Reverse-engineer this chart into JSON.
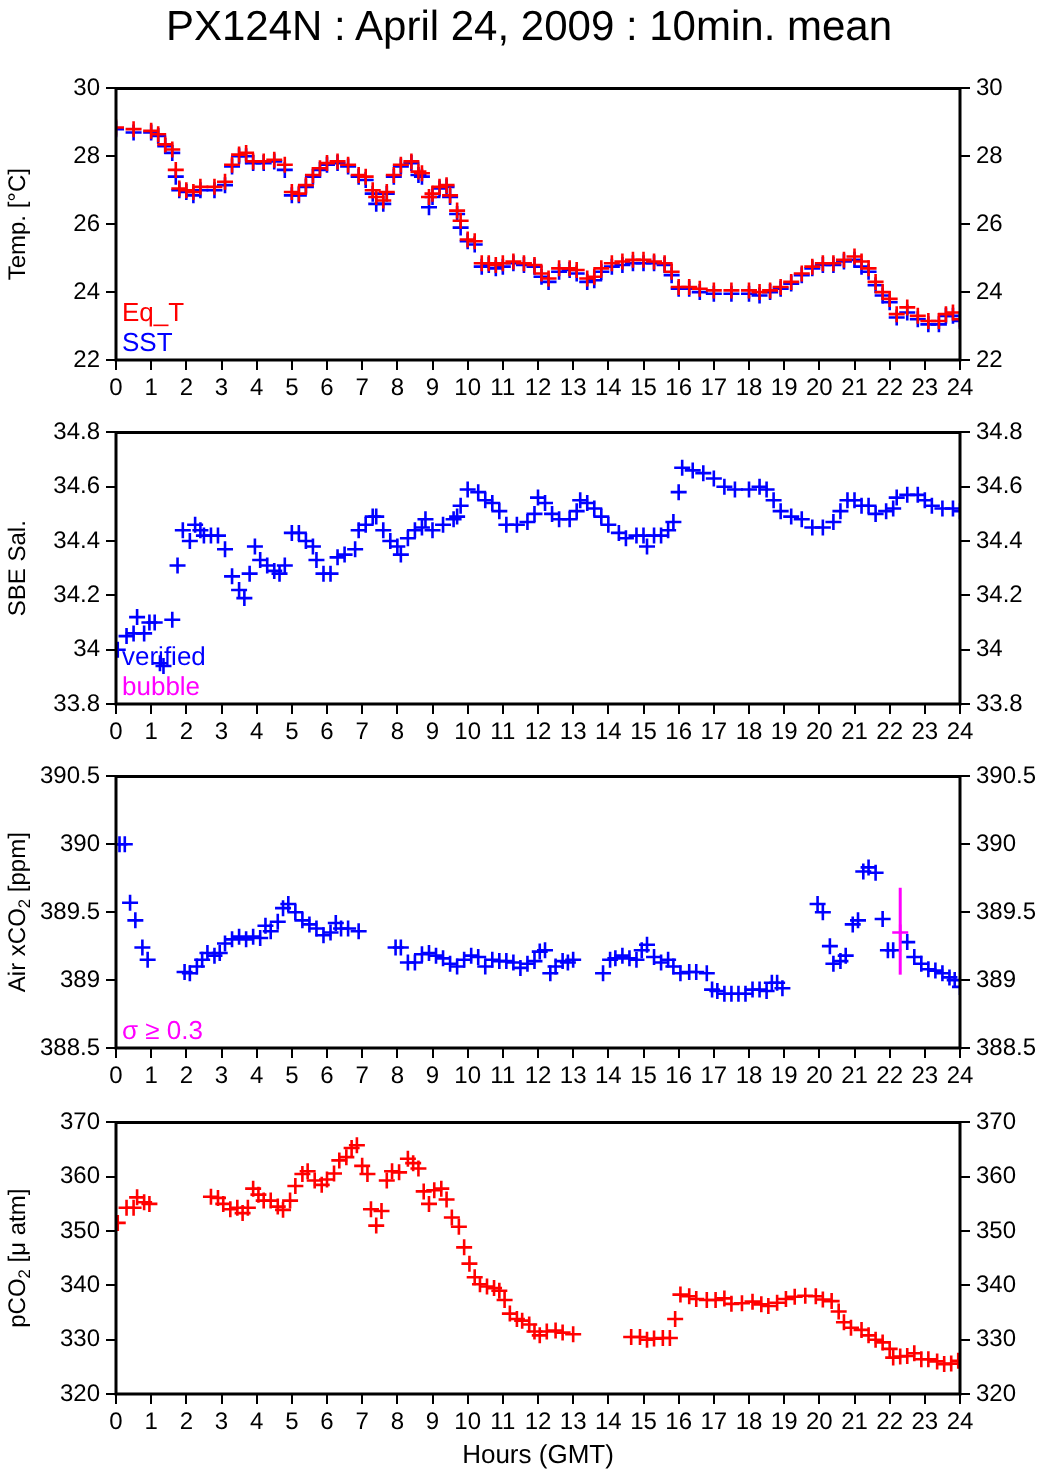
{
  "chart_data": [
    {
      "type": "scatter",
      "title": "PX124N : April 24, 2009 : 10min. mean",
      "ylabel": "Temp. [°C]",
      "xlim": [
        0,
        24
      ],
      "xticks": [
        0,
        1,
        2,
        3,
        4,
        5,
        6,
        7,
        8,
        9,
        10,
        11,
        12,
        13,
        14,
        15,
        16,
        17,
        18,
        19,
        20,
        21,
        22,
        23,
        24
      ],
      "ylim": [
        22,
        30
      ],
      "yticks": [
        22,
        24,
        26,
        28,
        30
      ],
      "y2lim": [
        22,
        30
      ],
      "y2ticks": [
        22,
        24,
        26,
        28,
        30
      ],
      "grid": false,
      "marker": "cross",
      "legend": "bottom left",
      "x": [
        0,
        0.5,
        1,
        1.2,
        1.4,
        1.6,
        1.7,
        1.8,
        2,
        2.2,
        2.4,
        2.8,
        3.1,
        3.3,
        3.5,
        3.7,
        3.9,
        4.2,
        4.5,
        4.8,
        5,
        5.2,
        5.4,
        5.6,
        5.8,
        6,
        6.3,
        6.6,
        6.9,
        7.1,
        7.3,
        7.4,
        7.6,
        7.7,
        7.9,
        8.1,
        8.4,
        8.6,
        8.7,
        8.9,
        9,
        9.2,
        9.4,
        9.5,
        9.7,
        9.8,
        10,
        10.2,
        10.4,
        10.6,
        10.8,
        11,
        11.3,
        11.6,
        11.9,
        12.1,
        12.3,
        12.6,
        12.9,
        13.1,
        13.4,
        13.6,
        13.8,
        14.1,
        14.4,
        14.7,
        15,
        15.3,
        15.6,
        15.8,
        16,
        16.3,
        16.6,
        17,
        17.5,
        18,
        18.3,
        18.6,
        18.9,
        19.2,
        19.5,
        19.8,
        20.1,
        20.4,
        20.7,
        21,
        21.2,
        21.4,
        21.6,
        21.8,
        22,
        22.2,
        22.5,
        22.8,
        23.1,
        23.4,
        23.6,
        23.8,
        24
      ],
      "series": [
        {
          "name": "Eq_T",
          "color": "#ff0000",
          "values": [
            28.85,
            28.8,
            28.75,
            28.65,
            28.35,
            28.2,
            27.6,
            27.05,
            27.0,
            26.95,
            27.1,
            27.1,
            27.25,
            27.75,
            28.05,
            28.1,
            27.85,
            27.85,
            27.9,
            27.75,
            26.95,
            26.9,
            27.15,
            27.45,
            27.65,
            27.8,
            27.85,
            27.75,
            27.45,
            27.4,
            27.0,
            26.8,
            26.7,
            26.95,
            27.45,
            27.75,
            27.85,
            27.55,
            27.5,
            26.8,
            26.9,
            27.1,
            27.15,
            26.85,
            26.4,
            26.1,
            25.55,
            25.5,
            24.85,
            24.85,
            24.8,
            24.85,
            24.9,
            24.85,
            24.8,
            24.55,
            24.4,
            24.7,
            24.7,
            24.65,
            24.4,
            24.45,
            24.7,
            24.85,
            24.9,
            24.95,
            24.95,
            24.9,
            24.85,
            24.6,
            24.15,
            24.15,
            24.1,
            24.05,
            24.05,
            24.05,
            24.0,
            24.05,
            24.15,
            24.3,
            24.55,
            24.75,
            24.85,
            24.85,
            24.95,
            25.05,
            24.9,
            24.7,
            24.3,
            24.0,
            23.8,
            23.35,
            23.55,
            23.3,
            23.15,
            23.15,
            23.35,
            23.4,
            23.2
          ]
        },
        {
          "name": "SST",
          "color": "#0000ff",
          "values": [
            28.8,
            28.7,
            28.7,
            28.6,
            28.3,
            28.1,
            27.4,
            27.0,
            26.95,
            26.85,
            27.0,
            27.0,
            27.15,
            27.7,
            28.0,
            28.0,
            27.8,
            27.8,
            27.85,
            27.6,
            26.85,
            26.85,
            27.1,
            27.4,
            27.6,
            27.75,
            27.8,
            27.7,
            27.4,
            27.3,
            26.9,
            26.6,
            26.6,
            26.9,
            27.4,
            27.7,
            27.8,
            27.45,
            27.4,
            26.5,
            26.8,
            27.05,
            27.1,
            26.8,
            26.3,
            25.9,
            25.5,
            25.4,
            24.75,
            24.8,
            24.7,
            24.75,
            24.85,
            24.8,
            24.75,
            24.45,
            24.3,
            24.6,
            24.65,
            24.55,
            24.3,
            24.35,
            24.6,
            24.75,
            24.8,
            24.85,
            24.85,
            24.85,
            24.8,
            24.5,
            24.1,
            24.1,
            24.0,
            23.95,
            23.95,
            23.95,
            23.9,
            24.0,
            24.1,
            24.25,
            24.5,
            24.7,
            24.8,
            24.8,
            24.9,
            24.95,
            24.75,
            24.6,
            24.2,
            23.9,
            23.7,
            23.25,
            23.4,
            23.2,
            23.05,
            23.05,
            23.3,
            23.3,
            23.15
          ]
        }
      ]
    },
    {
      "type": "scatter",
      "ylabel": "SBE Sal.",
      "xlim": [
        0,
        24
      ],
      "xticks": [
        0,
        1,
        2,
        3,
        4,
        5,
        6,
        7,
        8,
        9,
        10,
        11,
        12,
        13,
        14,
        15,
        16,
        17,
        18,
        19,
        20,
        21,
        22,
        23,
        24
      ],
      "ylim": [
        33.8,
        34.8
      ],
      "yticks": [
        33.8,
        34,
        34.2,
        34.4,
        34.6,
        34.8
      ],
      "y2lim": [
        33.8,
        34.8
      ],
      "y2ticks": [
        33.8,
        34,
        34.2,
        34.4,
        34.6,
        34.8
      ],
      "grid": false,
      "marker": "cross",
      "legend": "bottom left",
      "series": [
        {
          "name": "verified",
          "color": "#0000ff",
          "x": [
            0.05,
            0.3,
            0.5,
            0.6,
            0.8,
            0.95,
            1.1,
            1.25,
            1.35,
            1.6,
            1.75,
            1.9,
            2.1,
            2.25,
            2.4,
            2.5,
            2.7,
            2.9,
            3.1,
            3.3,
            3.5,
            3.65,
            3.8,
            3.95,
            4.1,
            4.3,
            4.5,
            4.65,
            4.8,
            5,
            5.2,
            5.4,
            5.6,
            5.7,
            5.9,
            6.1,
            6.3,
            6.5,
            6.8,
            6.9,
            7.1,
            7.3,
            7.4,
            7.6,
            7.8,
            8,
            8.1,
            8.3,
            8.5,
            8.7,
            8.8,
            9,
            9.3,
            9.6,
            9.7,
            9.8,
            10,
            10.3,
            10.5,
            10.7,
            10.9,
            11.1,
            11.4,
            11.7,
            11.9,
            12,
            12.2,
            12.4,
            12.6,
            12.9,
            13.1,
            13.2,
            13.4,
            13.6,
            13.8,
            14,
            14.3,
            14.5,
            14.8,
            15,
            15.1,
            15.3,
            15.5,
            15.7,
            15.85,
            16,
            16.1,
            16.4,
            16.7,
            17,
            17.3,
            17.6,
            18,
            18.3,
            18.5,
            18.7,
            18.9,
            19.2,
            19.5,
            19.8,
            20.1,
            20.4,
            20.6,
            20.8,
            21,
            21.2,
            21.4,
            21.6,
            21.9,
            22.1,
            22.2,
            22.5,
            22.8,
            23,
            23.2,
            23.5,
            23.8,
            24
          ],
          "values": [
            34.0,
            34.05,
            34.06,
            34.12,
            34.06,
            34.1,
            34.1,
            33.95,
            33.94,
            34.11,
            34.31,
            34.44,
            34.4,
            34.46,
            34.44,
            34.42,
            34.42,
            34.42,
            34.37,
            34.27,
            34.22,
            34.19,
            34.28,
            34.38,
            34.33,
            34.31,
            34.29,
            34.28,
            34.31,
            34.43,
            34.43,
            34.4,
            34.38,
            34.33,
            34.28,
            34.28,
            34.34,
            34.35,
            34.37,
            34.44,
            34.46,
            34.49,
            34.49,
            34.44,
            34.4,
            34.38,
            34.35,
            34.41,
            34.44,
            34.45,
            34.48,
            34.44,
            34.46,
            34.48,
            34.49,
            34.53,
            34.59,
            34.58,
            34.55,
            34.54,
            34.51,
            34.46,
            34.46,
            34.47,
            34.5,
            34.56,
            34.54,
            34.5,
            34.48,
            34.48,
            34.51,
            34.55,
            34.54,
            34.52,
            34.49,
            34.46,
            34.43,
            34.41,
            34.42,
            34.42,
            34.38,
            34.42,
            34.42,
            34.44,
            34.47,
            34.58,
            34.67,
            34.66,
            34.65,
            34.63,
            34.6,
            34.59,
            34.59,
            34.6,
            34.59,
            34.55,
            34.51,
            34.49,
            34.48,
            34.45,
            34.45,
            34.47,
            34.51,
            34.55,
            34.55,
            34.53,
            34.53,
            34.5,
            34.51,
            34.52,
            34.56,
            34.57,
            34.57,
            34.55,
            34.53,
            34.52,
            34.52,
            34.51
          ]
        },
        {
          "name": "bubble",
          "color": "#ff00ff"
        }
      ]
    },
    {
      "type": "scatter",
      "ylabel": "Air xCO$_{2}$ [ppm]",
      "xlim": [
        0,
        24
      ],
      "xticks": [
        0,
        1,
        2,
        3,
        4,
        5,
        6,
        7,
        8,
        9,
        10,
        11,
        12,
        13,
        14,
        15,
        16,
        17,
        18,
        19,
        20,
        21,
        22,
        23,
        24
      ],
      "ylim": [
        388.5,
        390.5
      ],
      "yticks": [
        388.5,
        389,
        389.5,
        390,
        390.5
      ],
      "y2lim": [
        388.5,
        390.5
      ],
      "y2ticks": [
        388.5,
        389,
        389.5,
        390,
        390.5
      ],
      "grid": false,
      "marker": "cross",
      "legend": "bottom left",
      "series": [
        {
          "color": "#0000ff",
          "x": [
            0.1,
            0.25,
            0.4,
            0.55,
            0.75,
            0.9,
            1.95,
            2.1,
            2.3,
            2.45,
            2.6,
            2.8,
            2.95,
            3.1,
            3.3,
            3.5,
            3.7,
            3.9,
            4.1,
            4.25,
            4.4,
            4.6,
            4.75,
            4.9,
            5.1,
            5.3,
            5.5,
            5.7,
            5.9,
            6.1,
            6.25,
            6.4,
            6.6,
            6.9,
            7.95,
            8.1,
            8.3,
            8.5,
            8.7,
            8.9,
            9.1,
            9.3,
            9.5,
            9.7,
            9.9,
            10.1,
            10.3,
            10.5,
            10.7,
            10.9,
            11.1,
            11.3,
            11.5,
            11.7,
            11.9,
            12.05,
            12.2,
            12.35,
            12.5,
            12.7,
            12.85,
            13,
            13.85,
            14.05,
            14.2,
            14.4,
            14.6,
            14.8,
            14.95,
            15.1,
            15.3,
            15.5,
            15.7,
            15.85,
            16.05,
            16.3,
            16.5,
            16.8,
            16.95,
            17.1,
            17.3,
            17.5,
            17.7,
            17.9,
            18.1,
            18.3,
            18.5,
            18.65,
            18.8,
            18.95,
            19.95,
            20.1,
            20.3,
            20.4,
            20.6,
            20.75,
            20.95,
            21.1,
            21.25,
            21.4,
            21.6,
            21.8,
            21.95,
            22.1,
            22.5,
            22.7,
            22.9,
            23.1,
            23.3,
            23.5,
            23.7,
            23.85,
            24
          ],
          "values": [
            390.0,
            390.0,
            389.57,
            389.44,
            389.24,
            389.15,
            389.06,
            389.05,
            389.1,
            389.15,
            389.2,
            389.18,
            389.2,
            389.27,
            389.3,
            389.32,
            389.3,
            389.32,
            389.31,
            389.4,
            389.36,
            389.43,
            389.53,
            389.56,
            389.5,
            389.44,
            389.41,
            389.38,
            389.33,
            389.35,
            389.42,
            389.38,
            389.38,
            389.36,
            389.24,
            389.24,
            389.13,
            389.13,
            389.19,
            389.2,
            389.18,
            389.16,
            389.12,
            389.1,
            389.15,
            389.18,
            389.17,
            389.1,
            389.15,
            389.14,
            389.14,
            389.13,
            389.09,
            389.12,
            389.14,
            389.21,
            389.22,
            389.05,
            389.1,
            389.14,
            389.13,
            389.15,
            389.05,
            389.15,
            389.16,
            389.18,
            389.16,
            389.15,
            389.22,
            389.26,
            389.17,
            389.13,
            389.15,
            389.1,
            389.05,
            389.06,
            389.06,
            389.05,
            388.93,
            388.92,
            388.9,
            388.9,
            388.9,
            388.9,
            388.93,
            388.93,
            388.92,
            388.98,
            388.98,
            388.94,
            389.56,
            389.5,
            389.25,
            389.12,
            389.14,
            389.18,
            389.41,
            389.44,
            389.8,
            389.83,
            389.79,
            389.45,
            389.22,
            389.22,
            389.28,
            389.17,
            389.12,
            389.08,
            389.07,
            389.05,
            389.02,
            389.0,
            388.95
          ]
        },
        {
          "name": "σ ≥ 0.3",
          "color": "#ff00ff",
          "x": [
            22.3
          ],
          "values": [
            389.35
          ],
          "errors": [
            [
              389.04,
              389.68
            ]
          ]
        }
      ]
    },
    {
      "type": "scatter",
      "ylabel": "pCO$_{2}$ [μ atm]",
      "xlabel": "Hours (GMT)",
      "xlim": [
        0,
        24
      ],
      "xticks": [
        0,
        1,
        2,
        3,
        4,
        5,
        6,
        7,
        8,
        9,
        10,
        11,
        12,
        13,
        14,
        15,
        16,
        17,
        18,
        19,
        20,
        21,
        22,
        23,
        24
      ],
      "ylim": [
        320,
        370
      ],
      "yticks": [
        320,
        330,
        340,
        350,
        360,
        370
      ],
      "y2lim": [
        320,
        370
      ],
      "y2ticks": [
        320,
        330,
        340,
        350,
        360,
        370
      ],
      "grid": false,
      "marker": "cross",
      "series": [
        {
          "color": "#ff0000",
          "x": [
            0.05,
            0.3,
            0.5,
            0.6,
            0.8,
            0.95,
            2.7,
            2.9,
            3.05,
            3.25,
            3.45,
            3.6,
            3.75,
            3.9,
            4.05,
            4.2,
            4.4,
            4.6,
            4.75,
            4.95,
            5.1,
            5.3,
            5.45,
            5.65,
            5.85,
            6,
            6.2,
            6.35,
            6.55,
            6.7,
            6.85,
            7,
            7.15,
            7.25,
            7.4,
            7.55,
            7.7,
            7.85,
            8.05,
            8.3,
            8.45,
            8.6,
            8.75,
            8.9,
            9.05,
            9.25,
            9.4,
            9.55,
            9.75,
            9.9,
            10.05,
            10.2,
            10.35,
            10.55,
            10.75,
            10.9,
            11.05,
            11.2,
            11.4,
            11.55,
            11.75,
            11.9,
            12.05,
            12.25,
            12.5,
            12.7,
            13,
            14.65,
            14.9,
            15.1,
            15.3,
            15.55,
            15.75,
            15.9,
            16.05,
            16.3,
            16.5,
            16.8,
            17.05,
            17.3,
            17.5,
            17.8,
            18.1,
            18.35,
            18.55,
            18.8,
            19.05,
            19.3,
            19.6,
            19.9,
            20.1,
            20.35,
            20.55,
            20.7,
            20.9,
            21.2,
            21.4,
            21.6,
            21.8,
            22,
            22.1,
            22.3,
            22.5,
            22.7,
            22.9,
            23.1,
            23.35,
            23.55,
            23.75,
            23.95
          ],
          "values": [
            351.5,
            354.3,
            354.3,
            356.2,
            355.3,
            355.0,
            356.3,
            356.1,
            355.0,
            354.0,
            354.3,
            353.3,
            354.3,
            357.8,
            356.7,
            355.6,
            355.6,
            354.5,
            353.9,
            355.6,
            358.3,
            360.5,
            361.0,
            359.3,
            358.5,
            359.5,
            360.6,
            363.0,
            363.6,
            365.3,
            365.8,
            362.0,
            360.5,
            354.0,
            351.0,
            353.7,
            359.3,
            361.0,
            360.8,
            363.3,
            362.5,
            361.5,
            357.3,
            355.0,
            357.5,
            357.8,
            355.8,
            352.5,
            350.8,
            347.0,
            344.0,
            341.5,
            340.2,
            339.8,
            339.5,
            339.0,
            337.3,
            334.8,
            333.8,
            333.5,
            332.8,
            331.5,
            330.8,
            331.5,
            331.7,
            331.3,
            331.0,
            330.5,
            330.5,
            330.0,
            330.2,
            330.3,
            330.3,
            333.8,
            338.3,
            338.0,
            337.5,
            337.3,
            337.3,
            337.6,
            336.6,
            336.7,
            337.0,
            336.5,
            336.2,
            336.8,
            337.5,
            337.9,
            338.1,
            338.0,
            337.4,
            337.1,
            335.2,
            333.2,
            332.2,
            331.8,
            330.8,
            330.0,
            329.5,
            328.3,
            326.7,
            326.9,
            327.0,
            327.5,
            326.4,
            326.4,
            326.0,
            325.5,
            325.6,
            326.1
          ]
        }
      ]
    }
  ]
}
